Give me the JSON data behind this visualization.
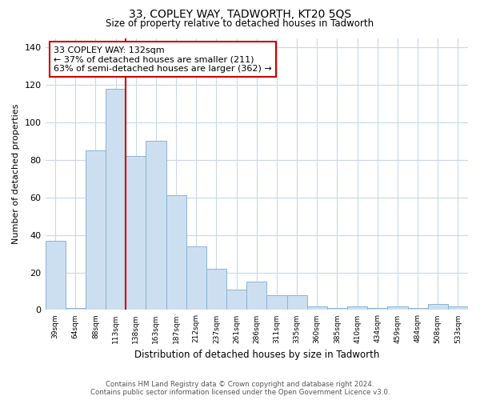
{
  "title": "33, COPLEY WAY, TADWORTH, KT20 5QS",
  "subtitle": "Size of property relative to detached houses in Tadworth",
  "xlabel": "Distribution of detached houses by size in Tadworth",
  "ylabel": "Number of detached properties",
  "bar_labels": [
    "39sqm",
    "64sqm",
    "88sqm",
    "113sqm",
    "138sqm",
    "163sqm",
    "187sqm",
    "212sqm",
    "237sqm",
    "261sqm",
    "286sqm",
    "311sqm",
    "335sqm",
    "360sqm",
    "385sqm",
    "410sqm",
    "434sqm",
    "459sqm",
    "484sqm",
    "508sqm",
    "533sqm"
  ],
  "bar_values": [
    37,
    1,
    85,
    118,
    82,
    90,
    61,
    34,
    22,
    11,
    15,
    8,
    8,
    2,
    1,
    2,
    1,
    2,
    1,
    3,
    2
  ],
  "bar_color": "#ccdff0",
  "bar_edge_color": "#8ab4d4",
  "vline_index": 4,
  "vline_color": "#cc0000",
  "annotation_text": "33 COPLEY WAY: 132sqm\n← 37% of detached houses are smaller (211)\n63% of semi-detached houses are larger (362) →",
  "annotation_box_color": "#ffffff",
  "annotation_box_edge": "#cc0000",
  "ylim": [
    0,
    145
  ],
  "yticks": [
    0,
    20,
    40,
    60,
    80,
    100,
    120,
    140
  ],
  "footer_line1": "Contains HM Land Registry data © Crown copyright and database right 2024.",
  "footer_line2": "Contains public sector information licensed under the Open Government Licence v3.0.",
  "bg_color": "#ffffff",
  "grid_color": "#c8d8e8"
}
